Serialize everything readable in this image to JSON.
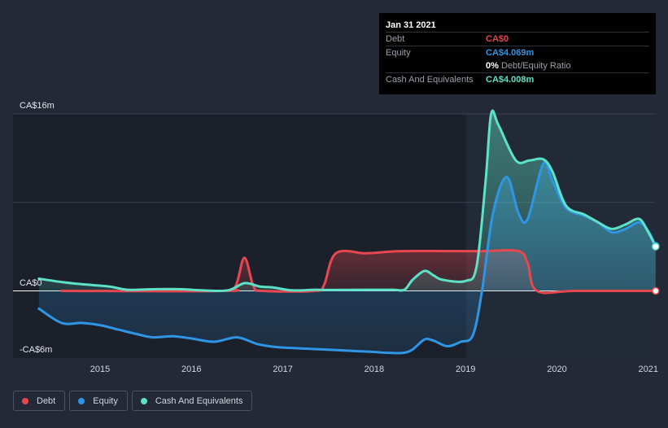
{
  "chart_data": {
    "type": "area",
    "x_range": [
      2014.33,
      2021.08
    ],
    "ylim": [
      -6.5,
      16
    ],
    "y_ticks": [
      {
        "label": "CA$16m",
        "value": 16
      },
      {
        "label": "CA$0",
        "value": 0
      },
      {
        "label": "-CA$6m",
        "value": -6
      }
    ],
    "x_ticks": [
      {
        "label": "2015",
        "value": 2015
      },
      {
        "label": "2016",
        "value": 2016
      },
      {
        "label": "2017",
        "value": 2017
      },
      {
        "label": "2018",
        "value": 2018
      },
      {
        "label": "2019",
        "value": 2019
      },
      {
        "label": "2020",
        "value": 2020
      },
      {
        "label": "2021",
        "value": 2021
      }
    ],
    "grid": true,
    "legend_position": "bottom-left",
    "series": [
      {
        "name": "Debt",
        "color": "#e8474f",
        "points": [
          [
            2014.58,
            0
          ],
          [
            2016.33,
            0
          ],
          [
            2016.48,
            0.4
          ],
          [
            2016.58,
            3.0
          ],
          [
            2016.68,
            0.4
          ],
          [
            2016.78,
            0
          ],
          [
            2017.35,
            0
          ],
          [
            2017.45,
            0.5
          ],
          [
            2017.58,
            3.4
          ],
          [
            2017.9,
            3.4
          ],
          [
            2018.1,
            3.5
          ],
          [
            2018.3,
            3.6
          ],
          [
            2018.8,
            3.6
          ],
          [
            2019.2,
            3.6
          ],
          [
            2019.58,
            3.6
          ],
          [
            2019.68,
            2.5
          ],
          [
            2019.78,
            0
          ],
          [
            2020.2,
            0
          ],
          [
            2021.08,
            0
          ]
        ]
      },
      {
        "name": "Equity",
        "color": "#2f96e6",
        "points": [
          [
            2014.33,
            -1.6
          ],
          [
            2014.58,
            -2.9
          ],
          [
            2014.8,
            -2.9
          ],
          [
            2015.0,
            -3.1
          ],
          [
            2015.2,
            -3.5
          ],
          [
            2015.4,
            -3.9
          ],
          [
            2015.58,
            -4.2
          ],
          [
            2015.8,
            -4.1
          ],
          [
            2016.0,
            -4.3
          ],
          [
            2016.25,
            -4.6
          ],
          [
            2016.5,
            -4.2
          ],
          [
            2016.72,
            -4.8
          ],
          [
            2016.95,
            -5.1
          ],
          [
            2017.2,
            -5.2
          ],
          [
            2017.45,
            -5.3
          ],
          [
            2017.7,
            -5.4
          ],
          [
            2017.95,
            -5.5
          ],
          [
            2018.15,
            -5.6
          ],
          [
            2018.32,
            -5.6
          ],
          [
            2018.42,
            -5.3
          ],
          [
            2018.55,
            -4.4
          ],
          [
            2018.65,
            -4.5
          ],
          [
            2018.8,
            -5.0
          ],
          [
            2018.95,
            -4.6
          ],
          [
            2019.08,
            -4.0
          ],
          [
            2019.18,
            0
          ],
          [
            2019.3,
            7.0
          ],
          [
            2019.45,
            10.3
          ],
          [
            2019.58,
            7.0
          ],
          [
            2019.68,
            6.5
          ],
          [
            2019.85,
            11.5
          ],
          [
            2019.95,
            10.0
          ],
          [
            2020.1,
            7.5
          ],
          [
            2020.3,
            6.8
          ],
          [
            2020.45,
            6.2
          ],
          [
            2020.6,
            5.3
          ],
          [
            2020.75,
            5.6
          ],
          [
            2020.9,
            6.2
          ],
          [
            2021.0,
            5.4
          ],
          [
            2021.08,
            4.069
          ]
        ]
      },
      {
        "name": "Cash And Equivalents",
        "color": "#5de2c8",
        "points": [
          [
            2014.33,
            1.1
          ],
          [
            2014.58,
            0.8
          ],
          [
            2014.8,
            0.6
          ],
          [
            2015.1,
            0.4
          ],
          [
            2015.3,
            0.1
          ],
          [
            2015.58,
            0.15
          ],
          [
            2015.9,
            0.15
          ],
          [
            2016.1,
            0.05
          ],
          [
            2016.4,
            0.05
          ],
          [
            2016.58,
            0.7
          ],
          [
            2016.75,
            0.4
          ],
          [
            2016.9,
            0.3
          ],
          [
            2017.1,
            0.05
          ],
          [
            2017.35,
            0.1
          ],
          [
            2017.5,
            0.08
          ],
          [
            2017.9,
            0.1
          ],
          [
            2018.2,
            0.1
          ],
          [
            2018.33,
            0.1
          ],
          [
            2018.42,
            1.0
          ],
          [
            2018.55,
            1.8
          ],
          [
            2018.65,
            1.4
          ],
          [
            2018.75,
            1.0
          ],
          [
            2019.0,
            0.9
          ],
          [
            2019.12,
            2.2
          ],
          [
            2019.22,
            10.0
          ],
          [
            2019.28,
            16.0
          ],
          [
            2019.36,
            15.0
          ],
          [
            2019.55,
            11.8
          ],
          [
            2019.7,
            11.8
          ],
          [
            2019.85,
            11.9
          ],
          [
            2019.95,
            10.8
          ],
          [
            2020.1,
            7.7
          ],
          [
            2020.3,
            6.9
          ],
          [
            2020.45,
            6.2
          ],
          [
            2020.6,
            5.6
          ],
          [
            2020.75,
            6.0
          ],
          [
            2020.9,
            6.5
          ],
          [
            2021.0,
            5.3
          ],
          [
            2021.08,
            4.008
          ]
        ]
      }
    ]
  },
  "tooltip": {
    "date": "Jan 31 2021",
    "rows": [
      {
        "label": "Debt",
        "value": "CA$0",
        "color": "#e8474f"
      },
      {
        "label": "Equity",
        "value": "CA$4.069m",
        "color": "#2f96e6"
      },
      {
        "label": "",
        "value": "0%",
        "sub": "Debt/Equity Ratio",
        "color": "#ffffff"
      },
      {
        "label": "Cash And Equivalents",
        "value": "CA$4.008m",
        "color": "#5de2c8"
      }
    ]
  },
  "legend": [
    {
      "label": "Debt",
      "color": "#e8474f"
    },
    {
      "label": "Equity",
      "color": "#2f96e6"
    },
    {
      "label": "Cash And Equivalents",
      "color": "#5de2c8"
    }
  ]
}
